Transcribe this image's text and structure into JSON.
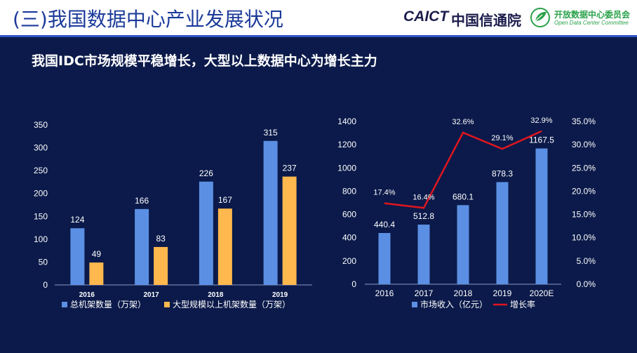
{
  "header": {
    "title": "(三)我国数据中心产业发展状况",
    "logo_caict": "CAICT",
    "logo_caict_cn": "中国信通院",
    "logo_odcc_cn": "开放数据中心委员会",
    "logo_odcc_en": "Open Data Center Committee"
  },
  "subtitle": "我国IDC市场规模平稳增长，大型以上数据中心为增长主力",
  "colors": {
    "background": "#0b1a4a",
    "bar_blue": "#5b8fe3",
    "bar_orange": "#ffb84d",
    "line_red": "#e0161e",
    "title_blue": "#1b3a9a",
    "odcc_green": "#2aa24a"
  },
  "chart_data": [
    {
      "type": "bar",
      "categories": [
        "2016",
        "2017",
        "2018",
        "2019"
      ],
      "series": [
        {
          "name": "总机架数量（万架）",
          "values": [
            124,
            166,
            226,
            315
          ]
        },
        {
          "name": "大型规模以上机架数量（万架）",
          "values": [
            49,
            83,
            167,
            237
          ]
        }
      ],
      "ylim": [
        0,
        350
      ],
      "yticks": [
        "0",
        "50",
        "100",
        "150",
        "200",
        "250",
        "300",
        "350"
      ],
      "data_labels": {
        "s0": [
          "124",
          "166",
          "226",
          "315"
        ],
        "s1": [
          "49",
          "83",
          "167",
          "237"
        ]
      },
      "legend": "bottom"
    },
    {
      "type": "bar",
      "categories": [
        "2016",
        "2017",
        "2018",
        "2019",
        "2020E"
      ],
      "series": [
        {
          "name": "市场收入（亿元）",
          "values": [
            440.4,
            512.8,
            680.1,
            878.3,
            1167.5
          ],
          "type": "bar"
        },
        {
          "name": "增长率",
          "values": [
            17.4,
            16.4,
            32.6,
            29.1,
            32.9
          ],
          "type": "line",
          "axis": "right"
        }
      ],
      "ylim": [
        0,
        1400
      ],
      "yticks": [
        "0",
        "200",
        "400",
        "600",
        "800",
        "1000",
        "1200",
        "1400"
      ],
      "y2lim": [
        0,
        35
      ],
      "y2ticks": [
        "0.0%",
        "5.0%",
        "10.0%",
        "15.0%",
        "20.0%",
        "25.0%",
        "30.0%",
        "35.0%"
      ],
      "data_labels": {
        "bars": [
          "440.4",
          "512.8",
          "680.1",
          "878.3",
          "1167.5"
        ],
        "line": [
          "17.4%",
          "16.4%",
          "32.6%",
          "29.1%",
          "32.9%"
        ]
      },
      "legend": "bottom"
    }
  ]
}
